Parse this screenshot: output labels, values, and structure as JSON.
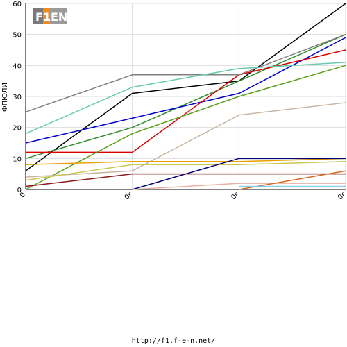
{
  "logo": {
    "text": "F1EN"
  },
  "footer": {
    "url": "http://f1.f-e-n.net/"
  },
  "chart_data": {
    "type": "line",
    "title": "",
    "ylabel": "ФПЮЛИ",
    "xlabel": "",
    "categories": [
      "0",
      "0r",
      "0r",
      "0r"
    ],
    "ylim": [
      0,
      60
    ],
    "yticks": [
      0,
      10,
      20,
      30,
      40,
      50,
      60
    ],
    "grid": true,
    "series": [
      {
        "color": "#000000",
        "values": [
          6,
          31,
          35,
          60
        ]
      },
      {
        "color": "#2e8b2e",
        "values": [
          10,
          20,
          35,
          50
        ]
      },
      {
        "color": "#0000cc",
        "values": [
          15,
          23,
          31,
          49
        ]
      },
      {
        "color": "#dd0000",
        "values": [
          12,
          12,
          37,
          45
        ]
      },
      {
        "color": "#808080",
        "values": [
          25,
          37,
          37,
          50
        ]
      },
      {
        "color": "#66ccb0",
        "values": [
          18,
          33,
          39,
          41
        ]
      },
      {
        "color": "#5a9e1a",
        "values": [
          0,
          18,
          30,
          40
        ]
      },
      {
        "color": "#c8b4a0",
        "values": [
          4,
          6,
          24,
          28
        ]
      },
      {
        "color": "#e8a000",
        "values": [
          8,
          9,
          9,
          10
        ]
      },
      {
        "color": "#c8c850",
        "values": [
          3,
          8,
          8,
          9
        ]
      },
      {
        "color": "#00006e",
        "values": [
          null,
          0,
          10,
          10
        ]
      },
      {
        "color": "#8b1a1a",
        "values": [
          1,
          5,
          5,
          5
        ]
      },
      {
        "color": "#e8b0a0",
        "values": [
          null,
          0,
          2,
          2
        ]
      },
      {
        "color": "#d2691e",
        "values": [
          null,
          null,
          0,
          6
        ]
      },
      {
        "color": "#87ceeb",
        "values": [
          null,
          null,
          1,
          1
        ]
      }
    ]
  }
}
